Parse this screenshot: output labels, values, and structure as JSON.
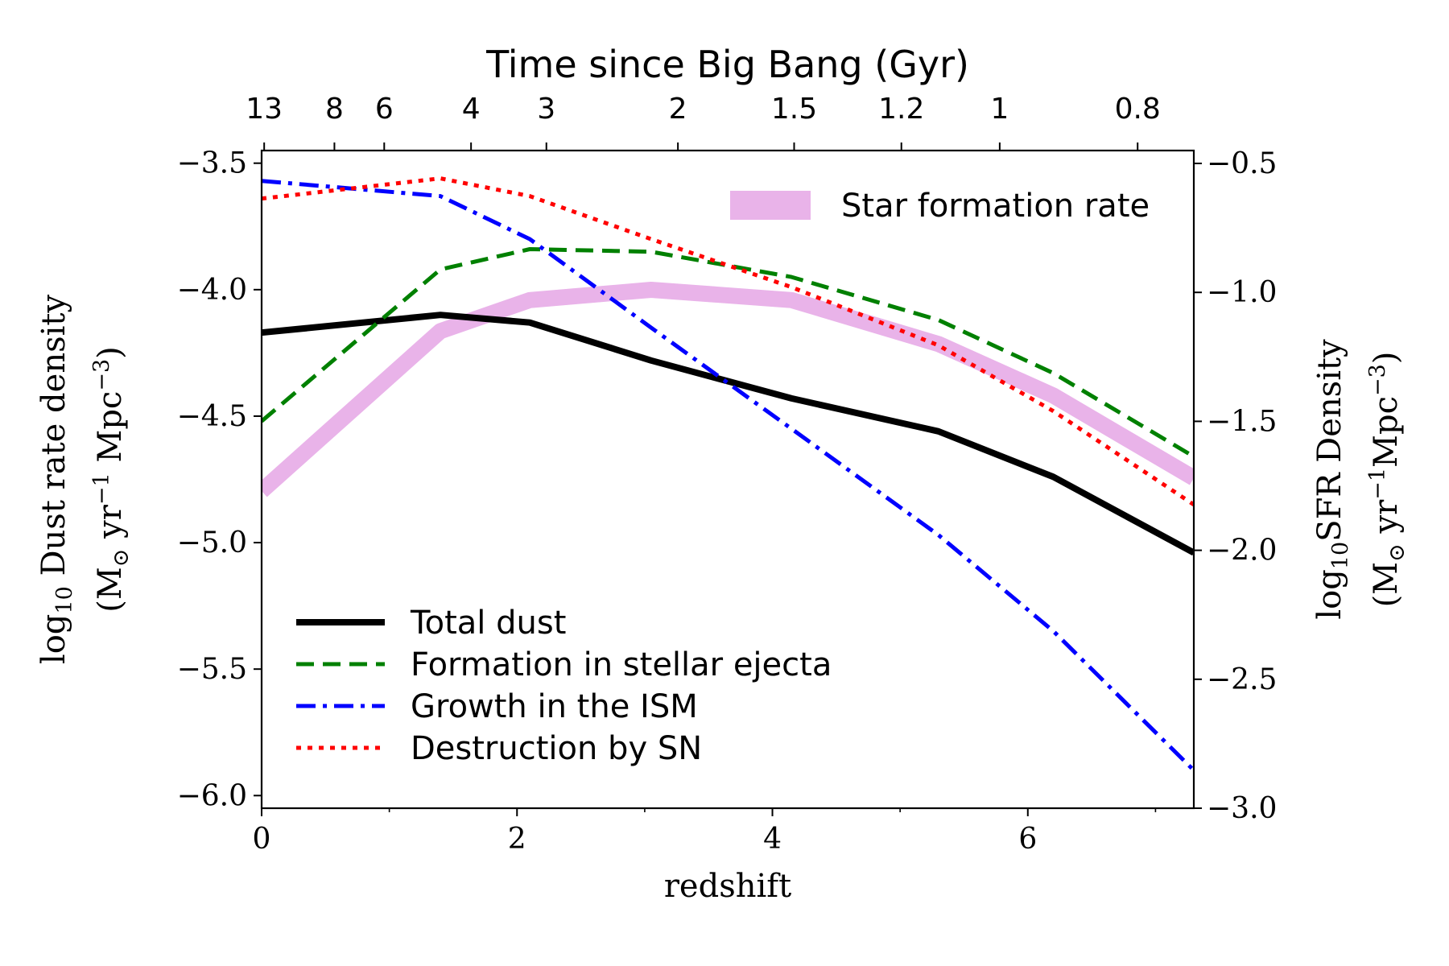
{
  "chart_data": {
    "type": "line",
    "xlabel": "redshift",
    "xlim": [
      0,
      7.3
    ],
    "x_ticks": [
      0,
      2,
      4,
      6
    ],
    "ylabel_left": [
      "log",
      "10",
      " Dust rate density"
    ],
    "ylabel_left_units": [
      "(M",
      "⊙",
      " yr",
      "−1",
      " Mpc",
      "−3",
      ")"
    ],
    "ylim_left": [
      -6.05,
      -3.45
    ],
    "y_ticks_left": [
      -3.5,
      -4.0,
      -4.5,
      -5.0,
      -5.5,
      -6.0
    ],
    "y_tick_labels_left": [
      "−3.5",
      "−4.0",
      "−4.5",
      "−5.0",
      "−5.5",
      "−6.0"
    ],
    "ylabel_right": [
      "log",
      "10",
      "SFR Density"
    ],
    "ylabel_right_units": [
      "(M",
      "⊙",
      " yr",
      "−1",
      "Mpc",
      "−3",
      ")"
    ],
    "ylim_right": [
      -3.0,
      -0.45
    ],
    "y_ticks_right": [
      -0.5,
      -1.0,
      -1.5,
      -2.0,
      -2.5,
      -3.0
    ],
    "y_tick_labels_right": [
      "−0.5",
      "−1.0",
      "−1.5",
      "−2.0",
      "−2.5",
      "−3.0"
    ],
    "top_axis": {
      "title": "Time since Big Bang (Gyr)",
      "ticks": [
        {
          "label": "13",
          "z": 0.02
        },
        {
          "label": "8",
          "z": 0.57
        },
        {
          "label": "6",
          "z": 0.96
        },
        {
          "label": "4",
          "z": 1.64
        },
        {
          "label": "3",
          "z": 2.23
        },
        {
          "label": "2",
          "z": 3.26
        },
        {
          "label": "1.5",
          "z": 4.17
        },
        {
          "label": "1.2",
          "z": 5.01
        },
        {
          "label": "1",
          "z": 5.78
        },
        {
          "label": "0.8",
          "z": 6.86
        }
      ]
    },
    "series": [
      {
        "name": "Star formation rate",
        "axis": "right",
        "color": "#e9b3e9",
        "style": "band",
        "x": [
          0,
          1.4,
          2.1,
          3.05,
          4.15,
          5.3,
          6.2,
          7.3
        ],
        "y": [
          -1.77,
          -1.15,
          -1.03,
          -0.99,
          -1.03,
          -1.2,
          -1.4,
          -1.72
        ]
      },
      {
        "name": "Total dust",
        "axis": "left",
        "color": "#000000",
        "style": "solid",
        "x": [
          0,
          1.4,
          2.1,
          3.05,
          4.15,
          5.3,
          6.2,
          7.3
        ],
        "y": [
          -4.17,
          -4.1,
          -4.13,
          -4.28,
          -4.43,
          -4.56,
          -4.74,
          -5.04
        ]
      },
      {
        "name": "Formation in stellar ejecta",
        "axis": "left",
        "color": "#008000",
        "style": "dashed",
        "x": [
          0,
          1.4,
          2.1,
          3.05,
          4.15,
          5.3,
          6.2,
          7.3
        ],
        "y": [
          -4.52,
          -3.92,
          -3.84,
          -3.85,
          -3.95,
          -4.12,
          -4.33,
          -4.66
        ]
      },
      {
        "name": "Growth in the ISM",
        "axis": "left",
        "color": "#0000ff",
        "style": "dashdot",
        "x": [
          0,
          1.4,
          2.1,
          3.05,
          4.15,
          5.3,
          6.2,
          7.3
        ],
        "y": [
          -3.57,
          -3.63,
          -3.8,
          -4.15,
          -4.55,
          -4.97,
          -5.35,
          -5.9
        ]
      },
      {
        "name": "Destruction by SN",
        "axis": "left",
        "color": "#ff0000",
        "style": "dotted",
        "x": [
          0,
          1.4,
          2.1,
          3.05,
          4.15,
          5.3,
          6.2,
          7.3
        ],
        "y": [
          -3.64,
          -3.56,
          -3.63,
          -3.8,
          -3.99,
          -4.22,
          -4.48,
          -4.85
        ]
      }
    ],
    "legend_upper": {
      "placement": "top-right",
      "entries": [
        "Star formation rate"
      ]
    },
    "legend_lower": {
      "placement": "bottom-left",
      "entries": [
        "Total dust",
        "Formation in stellar ejecta",
        "Growth in the ISM",
        "Destruction by SN"
      ]
    },
    "grid": false
  }
}
